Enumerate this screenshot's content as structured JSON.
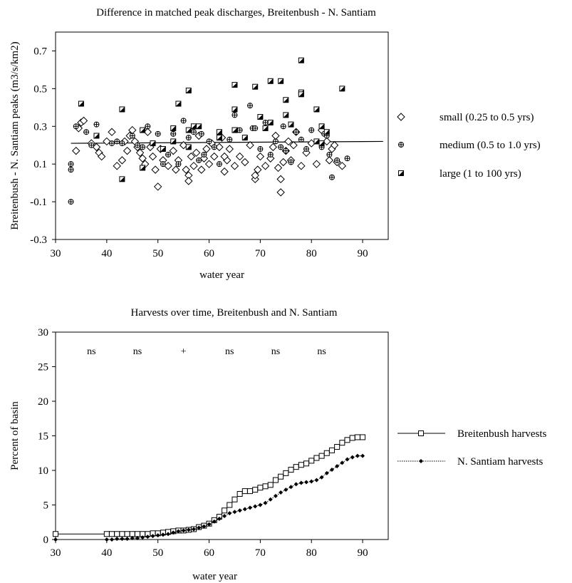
{
  "chart_data": [
    {
      "type": "scatter",
      "title": "Difference in matched peak discharges, Breitenbush - N. Santiam",
      "xlabel": "water year",
      "ylabel": "Breitenbush - N. Santiam peaks (m3/s/km2)",
      "xlim": [
        30,
        95
      ],
      "ylim": [
        -0.3,
        0.8
      ],
      "xticks": [
        "30",
        "40",
        "50",
        "60",
        "70",
        "80",
        "90"
      ],
      "yticks": [
        "-0.3",
        "-0.1",
        "0.1",
        "0.3",
        "0.5",
        "0.7"
      ],
      "reference_line": {
        "x": [
          33,
          94
        ],
        "y": [
          0.21,
          0.22
        ]
      },
      "legend_position": "right",
      "series": [
        {
          "name": "small (0.25 to 0.5 yrs)",
          "marker": "diamond",
          "points": [
            [
              34,
              0.17
            ],
            [
              34.5,
              0.29
            ],
            [
              35,
              0.32
            ],
            [
              35.5,
              0.33
            ],
            [
              37,
              0.21
            ],
            [
              38,
              0.19
            ],
            [
              38.5,
              0.16
            ],
            [
              39,
              0.14
            ],
            [
              40,
              0.22
            ],
            [
              41,
              0.27
            ],
            [
              42,
              0.09
            ],
            [
              43,
              0.12
            ],
            [
              43.5,
              0.22
            ],
            [
              44,
              0.17
            ],
            [
              44.5,
              0.25
            ],
            [
              45,
              0.28
            ],
            [
              45.5,
              0.22
            ],
            [
              46,
              0.19
            ],
            [
              46.5,
              0.16
            ],
            [
              47,
              0.13
            ],
            [
              47.5,
              0.1
            ],
            [
              48,
              0.27
            ],
            [
              48.5,
              0.19
            ],
            [
              49,
              0.14
            ],
            [
              49.5,
              0.07
            ],
            [
              50,
              -0.02
            ],
            [
              50.5,
              0.18
            ],
            [
              51,
              0.12
            ],
            [
              52,
              0.09
            ],
            [
              53,
              0.17
            ],
            [
              53.5,
              0.07
            ],
            [
              54,
              0.12
            ],
            [
              55,
              0.2
            ],
            [
              55.5,
              0.07
            ],
            [
              56,
              0.04
            ],
            [
              56.5,
              0.14
            ],
            [
              57,
              0.09
            ],
            [
              57.5,
              0.16
            ],
            [
              58,
              0.25
            ],
            [
              58.5,
              0.07
            ],
            [
              59,
              0.13
            ],
            [
              59.5,
              0.18
            ],
            [
              60,
              0.1
            ],
            [
              60.5,
              0.21
            ],
            [
              61,
              0.14
            ],
            [
              62,
              0.19
            ],
            [
              62.5,
              0.24
            ],
            [
              63,
              0.06
            ],
            [
              63.5,
              0.12
            ],
            [
              64,
              0.18
            ],
            [
              65,
              0.09
            ],
            [
              66,
              0.14
            ],
            [
              67,
              0.11
            ],
            [
              68,
              0.2
            ],
            [
              69,
              0.02
            ],
            [
              69.5,
              0.07
            ],
            [
              70,
              0.14
            ],
            [
              71,
              0.09
            ],
            [
              72,
              0.13
            ],
            [
              72.5,
              0.19
            ],
            [
              73,
              0.25
            ],
            [
              73.5,
              0.08
            ],
            [
              74,
              -0.05
            ],
            [
              74.5,
              0.11
            ],
            [
              75,
              0.17
            ],
            [
              75.5,
              0.22
            ],
            [
              76,
              0.12
            ],
            [
              76.5,
              0.2
            ],
            [
              77,
              0.27
            ],
            [
              78,
              0.09
            ],
            [
              79,
              0.16
            ],
            [
              80,
              0.21
            ],
            [
              81,
              0.1
            ],
            [
              82,
              0.28
            ],
            [
              83,
              0.22
            ],
            [
              83.5,
              0.12
            ],
            [
              84,
              0.18
            ],
            [
              84.5,
              0.2
            ],
            [
              85,
              0.11
            ],
            [
              86,
              0.09
            ],
            [
              56,
              0.01
            ],
            [
              74,
              0.02
            ],
            [
              63,
              0.14
            ],
            [
              69,
              0.04
            ]
          ]
        },
        {
          "name": "medium (0.5 to 1.0 yrs)",
          "marker": "circle-plus",
          "points": [
            [
              33,
              0.07
            ],
            [
              33,
              0.1
            ],
            [
              33,
              -0.1
            ],
            [
              34,
              0.3
            ],
            [
              36,
              0.27
            ],
            [
              37,
              0.2
            ],
            [
              38,
              0.31
            ],
            [
              41,
              0.21
            ],
            [
              42,
              0.22
            ],
            [
              43,
              0.21
            ],
            [
              45,
              0.25
            ],
            [
              46,
              0.2
            ],
            [
              47,
              0.19
            ],
            [
              48,
              0.3
            ],
            [
              50,
              0.26
            ],
            [
              51,
              0.1
            ],
            [
              52,
              0.15
            ],
            [
              53,
              0.26
            ],
            [
              54,
              0.1
            ],
            [
              55,
              0.33
            ],
            [
              56,
              0.24
            ],
            [
              57,
              0.27
            ],
            [
              58,
              0.12
            ],
            [
              59,
              0.15
            ],
            [
              60,
              0.22
            ],
            [
              61,
              0.19
            ],
            [
              62,
              0.1
            ],
            [
              64,
              0.23
            ],
            [
              65,
              0.36
            ],
            [
              65.5,
              0.28
            ],
            [
              66,
              0.28
            ],
            [
              67,
              0.24
            ],
            [
              68,
              0.41
            ],
            [
              68.5,
              0.29
            ],
            [
              69,
              0.29
            ],
            [
              70,
              0.18
            ],
            [
              71,
              0.32
            ],
            [
              72,
              0.15
            ],
            [
              73,
              0.22
            ],
            [
              74,
              0.19
            ],
            [
              74.5,
              0.3
            ],
            [
              75,
              0.17
            ],
            [
              76,
              0.11
            ],
            [
              77,
              0.27
            ],
            [
              78,
              0.23
            ],
            [
              79,
              0.18
            ],
            [
              80,
              0.28
            ],
            [
              81,
              0.22
            ],
            [
              82,
              0.19
            ],
            [
              82.5,
              0.26
            ],
            [
              83,
              0.25
            ],
            [
              83.5,
              0.15
            ],
            [
              84,
              0.03
            ],
            [
              85,
              0.12
            ],
            [
              87,
              0.13
            ],
            [
              58.5,
              0.26
            ]
          ]
        },
        {
          "name": "large (1 to 100 yrs)",
          "marker": "half-square",
          "points": [
            [
              35,
              0.42
            ],
            [
              38,
              0.25
            ],
            [
              43,
              0.02
            ],
            [
              43,
              0.39
            ],
            [
              47,
              0.08
            ],
            [
              47,
              0.28
            ],
            [
              49,
              0.21
            ],
            [
              51,
              0.18
            ],
            [
              53,
              0.22
            ],
            [
              53,
              0.29
            ],
            [
              54,
              0.42
            ],
            [
              56,
              0.49
            ],
            [
              56,
              0.28
            ],
            [
              56,
              0.19
            ],
            [
              57,
              0.3
            ],
            [
              62,
              0.27
            ],
            [
              62,
              0.24
            ],
            [
              65,
              0.52
            ],
            [
              65,
              0.39
            ],
            [
              65,
              0.28
            ],
            [
              67,
              0.24
            ],
            [
              69,
              0.51
            ],
            [
              70,
              0.35
            ],
            [
              71,
              0.29
            ],
            [
              72,
              0.54
            ],
            [
              72,
              0.32
            ],
            [
              74,
              0.54
            ],
            [
              75,
              0.44
            ],
            [
              75,
              0.36
            ],
            [
              76,
              0.31
            ],
            [
              78,
              0.65
            ],
            [
              78,
              0.48
            ],
            [
              78,
              0.47
            ],
            [
              81,
              0.39
            ],
            [
              81,
              0.22
            ],
            [
              82,
              0.3
            ],
            [
              82,
              0.21
            ],
            [
              83,
              0.27
            ],
            [
              86,
              0.5
            ],
            [
              58,
              0.3
            ]
          ]
        }
      ]
    },
    {
      "type": "line",
      "title": "Harvests over time, Breitenbush and N. Santiam",
      "xlabel": "water year",
      "ylabel": "Percent of basin",
      "xlim": [
        30,
        95
      ],
      "ylim": [
        0,
        30
      ],
      "xticks": [
        "30",
        "40",
        "50",
        "60",
        "70",
        "80",
        "90"
      ],
      "yticks": [
        "0",
        "5",
        "10",
        "15",
        "20",
        "25",
        "30"
      ],
      "annotations": [
        {
          "text": "ns",
          "x": 37
        },
        {
          "text": "ns",
          "x": 46
        },
        {
          "text": "+",
          "x": 55
        },
        {
          "text": "ns",
          "x": 64
        },
        {
          "text": "ns",
          "x": 73
        },
        {
          "text": "ns",
          "x": 82
        }
      ],
      "legend_position": "right",
      "series": [
        {
          "name": "Breitenbush harvests",
          "marker": "open-square",
          "line": "solid",
          "x": [
            30,
            40,
            41,
            42,
            43,
            44,
            45,
            46,
            47,
            48,
            49,
            50,
            51,
            52,
            53,
            54,
            55,
            56,
            57,
            58,
            59,
            60,
            61,
            62,
            63,
            64,
            65,
            66,
            67,
            68,
            69,
            70,
            71,
            72,
            73,
            74,
            75,
            76,
            77,
            78,
            79,
            80,
            81,
            82,
            83,
            84,
            85,
            86,
            87,
            88,
            89,
            90
          ],
          "y": [
            0.8,
            0.8,
            0.8,
            0.8,
            0.8,
            0.8,
            0.8,
            0.8,
            0.8,
            0.8,
            0.9,
            0.9,
            1.0,
            1.1,
            1.2,
            1.3,
            1.3,
            1.4,
            1.5,
            1.8,
            2.0,
            2.3,
            2.8,
            3.3,
            4.2,
            5.0,
            5.8,
            6.6,
            7.0,
            7.0,
            7.2,
            7.5,
            7.7,
            7.9,
            8.6,
            9.1,
            9.6,
            10.1,
            10.5,
            10.8,
            11.0,
            11.4,
            11.8,
            12.1,
            12.5,
            12.9,
            13.4,
            14.0,
            14.4,
            14.7,
            14.8,
            14.8
          ]
        },
        {
          "name": "N. Santiam harvests",
          "marker": "filled-diamond",
          "line": "dotted",
          "x": [
            30,
            40,
            41,
            42,
            43,
            44,
            45,
            46,
            47,
            48,
            49,
            50,
            51,
            52,
            53,
            54,
            55,
            56,
            57,
            58,
            59,
            60,
            61,
            62,
            63,
            64,
            65,
            66,
            67,
            68,
            69,
            70,
            71,
            72,
            73,
            74,
            75,
            76,
            77,
            78,
            79,
            80,
            81,
            82,
            83,
            84,
            85,
            86,
            87,
            88,
            89,
            90
          ],
          "y": [
            0.0,
            0.0,
            0.0,
            0.1,
            0.1,
            0.1,
            0.2,
            0.2,
            0.3,
            0.4,
            0.5,
            0.6,
            0.7,
            0.8,
            1.0,
            1.2,
            1.3,
            1.4,
            1.5,
            1.7,
            1.9,
            2.2,
            2.6,
            3.0,
            3.4,
            3.8,
            4.0,
            4.2,
            4.4,
            4.6,
            4.8,
            5.0,
            5.3,
            5.8,
            6.3,
            6.8,
            7.2,
            7.6,
            8.0,
            8.2,
            8.3,
            8.4,
            8.6,
            9.0,
            9.6,
            10.1,
            10.6,
            11.1,
            11.6,
            11.9,
            12.1,
            12.1
          ]
        }
      ]
    }
  ]
}
